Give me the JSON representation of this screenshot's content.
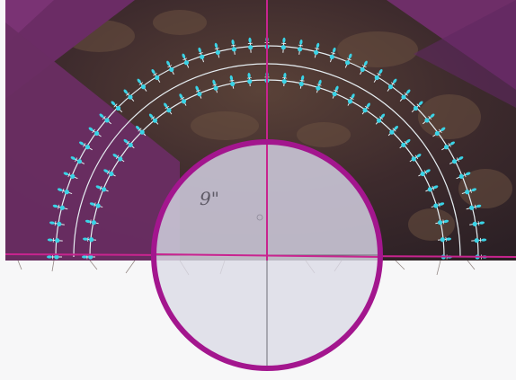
{
  "photo": {
    "description_visible_text": {
      "ruler_marking": "9\""
    },
    "colors": {
      "fabric_purple": "#6a2d63",
      "fabric_dark": "#3a2a2c",
      "guide_magenta": "#c0208f",
      "circle_ring": "#a3168e",
      "stitch_cyan": "#3ad3e6",
      "stitch_white": "#e9f0f3",
      "paper_white": "#f6f6f7"
    }
  }
}
